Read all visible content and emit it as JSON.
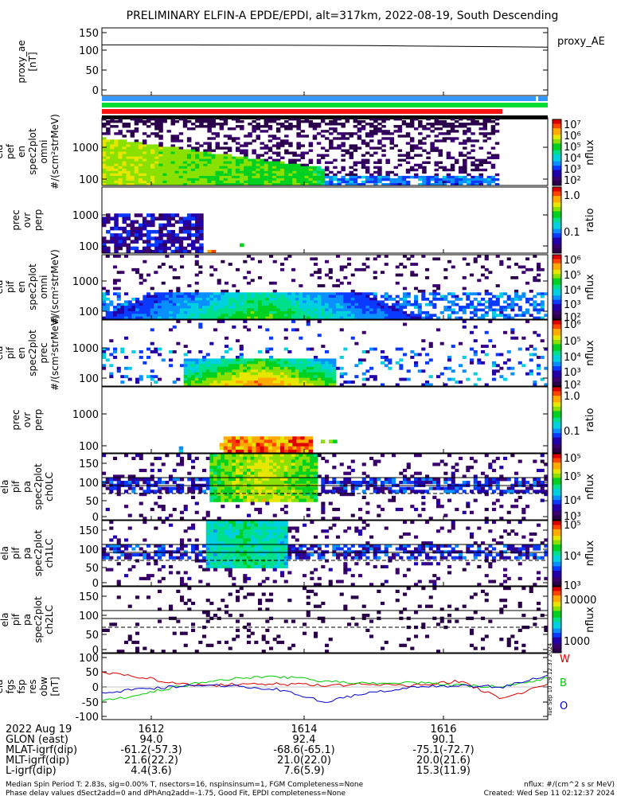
{
  "title": "PRELIMINARY ELFIN-A EPDE/EPDI, alt=317km, 2022-08-19, South Descending",
  "panels": [
    {
      "id": "ae",
      "ylabel": [
        "proxy_ae",
        "[nT]"
      ],
      "ticks": [
        "150",
        "100",
        "50",
        "0"
      ],
      "legend": "proxy_AE"
    },
    {
      "id": "pef",
      "ylabel": [
        "ela",
        "pef",
        "en",
        "spec2plot",
        "omni",
        "#/(scm²strMeV)"
      ],
      "ticks": [
        "1000",
        "100"
      ],
      "cbar": {
        "label": "nflux",
        "ticks": [
          "10⁷",
          "10⁶",
          "10⁵",
          "10⁴",
          "10³",
          "10²"
        ]
      }
    },
    {
      "id": "pef_ratio",
      "ylabel": [
        "prec",
        "ovr",
        "perp"
      ],
      "ticks": [
        "1000",
        "100"
      ],
      "cbar": {
        "label": "ratio",
        "ticks": [
          "1.0",
          "0.1"
        ]
      }
    },
    {
      "id": "pif_omni",
      "ylabel": [
        "ela",
        "pif",
        "en",
        "spec2plot",
        "omni",
        "#/(scm²strMeV)"
      ],
      "ticks": [
        "1000",
        "100"
      ],
      "cbar": {
        "label": "nflux",
        "ticks": [
          "10⁶",
          "10⁵",
          "10⁴",
          "10³",
          "10²"
        ]
      }
    },
    {
      "id": "pif_prec",
      "ylabel": [
        "ela",
        "pif",
        "en",
        "spec2plot",
        "prec",
        "#/(scm²strMeV)"
      ],
      "ticks": [
        "1000",
        "100"
      ],
      "cbar": {
        "label": "nflux",
        "ticks": [
          "10⁶",
          "10⁵",
          "10⁴",
          "10³",
          "10²"
        ]
      }
    },
    {
      "id": "pif_ratio",
      "ylabel": [
        "prec",
        "ovr",
        "perp"
      ],
      "ticks": [
        "1000",
        "100"
      ],
      "cbar": {
        "label": "ratio",
        "ticks": [
          "1.0",
          "0.1"
        ]
      }
    },
    {
      "id": "ch0",
      "ylabel": [
        "ela",
        "pif",
        "pa",
        "spec2plot",
        "ch0LC"
      ],
      "ticks": [
        "150",
        "100",
        "50",
        "0"
      ],
      "cbar": {
        "label": "nflux",
        "ticks": [
          "10⁵",
          "10⁵",
          "10⁴",
          "10³"
        ]
      }
    },
    {
      "id": "ch1",
      "ylabel": [
        "ela",
        "pif",
        "pa",
        "spec2plot",
        "ch1LC"
      ],
      "ticks": [
        "150",
        "100",
        "50",
        "0"
      ],
      "cbar": {
        "label": "nflux",
        "ticks": [
          "10⁵",
          "10⁴",
          "10³"
        ]
      }
    },
    {
      "id": "ch2",
      "ylabel": [
        "ela",
        "pif",
        "pa",
        "spec2plot",
        "ch2LC"
      ],
      "ticks": [
        "150",
        "100",
        "50",
        "0"
      ],
      "cbar": {
        "label": "nflux",
        "ticks": [
          "10000",
          "1000"
        ]
      }
    },
    {
      "id": "fgs",
      "ylabel": [
        "ela",
        "fgs",
        "fsp",
        "res",
        "obw",
        "[nT]"
      ],
      "ticks": [
        "100",
        "50",
        "0",
        "-50",
        "-100"
      ],
      "legend": [
        "W",
        "B",
        "O"
      ]
    }
  ],
  "orbit_table": {
    "rows": [
      {
        "label": "2022 Aug 19",
        "values": [
          "1612",
          "1614",
          "1616"
        ]
      },
      {
        "label": "GLON (east)",
        "values": [
          "94.0",
          "92.4",
          "90.1"
        ]
      },
      {
        "label": "MLAT-igrf(dip)",
        "values": [
          "-61.2(-57.3)",
          "-68.6(-65.1)",
          "-75.1(-72.7)"
        ]
      },
      {
        "label": "MLT-igrf(dip)",
        "values": [
          "21.6(22.2)",
          "21.0(22.0)",
          "20.0(21.6)"
        ]
      },
      {
        "label": "L-igrf(dip)",
        "values": [
          "4.4(3.6)",
          "7.6(5.9)",
          "15.3(11.9)"
        ]
      }
    ]
  },
  "footer": {
    "line1_left": "Median Spin Period T: 2.83s, sig=0.00% T, nsectors=16, nspinsinsum=1, FGM Completeness=None",
    "line2_left": "Phase delay values dSect2add=0 and dPhAng2add=-1.75, Good Fit, EPDI completeness=None",
    "line1_right": "nflux: #/(cm^2 s sr MeV)",
    "line2_right": "Created: Wed Sep 11 02:12:37 2024",
    "side_stamp": "Tue Sep 10 19:12:37 2024"
  },
  "colors": {
    "w": "#dd0000",
    "b": "#00cc00",
    "o": "#0000cc",
    "bar_blue": "#3399ff",
    "bar_green": "#00dd33",
    "bar_red": "#ff1111"
  },
  "chart_data": {
    "type": "line",
    "title": "PRELIMINARY ELFIN-A EPDE/EPDI, alt=317km, 2022-08-19, South Descending",
    "x_ticks": [
      "1612",
      "1614",
      "1616"
    ],
    "series": [
      {
        "name": "proxy_AE",
        "x": [
          0,
          1,
          2,
          3,
          4,
          5
        ],
        "values": [
          118,
          118,
          117,
          116,
          114,
          112
        ]
      },
      {
        "name": "W",
        "x": [
          0,
          0.5,
          1,
          1.5,
          2,
          2.5,
          3,
          3.5,
          4,
          4.5,
          5
        ],
        "values": [
          50,
          30,
          5,
          8,
          10,
          5,
          10,
          5,
          20,
          -40,
          10
        ]
      },
      {
        "name": "B",
        "x": [
          0,
          0.5,
          1,
          1.5,
          2,
          2.5,
          3,
          3.5,
          4,
          4.5,
          5
        ],
        "values": [
          -50,
          -20,
          10,
          30,
          35,
          20,
          10,
          15,
          5,
          0,
          30
        ]
      },
      {
        "name": "O",
        "x": [
          0,
          0.5,
          1,
          1.5,
          2,
          2.5,
          3,
          3.5,
          4,
          4.5,
          5
        ],
        "values": [
          -20,
          -5,
          5,
          5,
          -10,
          -50,
          -20,
          0,
          5,
          0,
          40
        ]
      }
    ]
  }
}
